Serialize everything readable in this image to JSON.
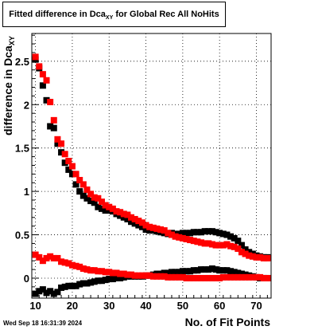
{
  "title": {
    "main": "Fitted difference in Dca",
    "sub": "XY",
    "rest": " for Global Rec All NoHits"
  },
  "axis_labels": {
    "y_main": "difference in Dca",
    "y_sub": "XY",
    "x": "No. of Fit Points"
  },
  "datestamp": "Wed Sep 18 16:31:39 2024",
  "chart_data": {
    "type": "scatter",
    "xlim": [
      9,
      74
    ],
    "ylim": [
      -0.23,
      2.82
    ],
    "grid": true,
    "x_ticks": [
      10,
      20,
      30,
      40,
      50,
      60,
      70
    ],
    "y_ticks": [
      0,
      0.5,
      1,
      1.5,
      2,
      2.5
    ],
    "y_tick_labels": [
      "0",
      "0.5",
      "1",
      "1.5",
      "2",
      "2.5"
    ],
    "series": [
      {
        "color": "#000000",
        "x": [
          10,
          11,
          12,
          13,
          14,
          15,
          16,
          17,
          18,
          19,
          20,
          21,
          22,
          23,
          24,
          25,
          26,
          27,
          28,
          29,
          30,
          31,
          32,
          33,
          34,
          35,
          36,
          37,
          38,
          39,
          40,
          41,
          42,
          43,
          44,
          45,
          46,
          47,
          48,
          49,
          50,
          51,
          52,
          53,
          54,
          55,
          56,
          57,
          58,
          59,
          60,
          61,
          62,
          63,
          64,
          65,
          66,
          67,
          68,
          69,
          70,
          71,
          72,
          73
        ],
        "y": [
          2.52,
          2.42,
          2.22,
          2.05,
          1.75,
          1.73,
          1.55,
          1.45,
          1.33,
          1.25,
          1.2,
          1.08,
          1.0,
          0.95,
          0.92,
          0.89,
          0.87,
          0.82,
          0.8,
          0.78,
          0.78,
          0.77,
          0.74,
          0.72,
          0.7,
          0.68,
          0.65,
          0.63,
          0.61,
          0.59,
          0.56,
          0.55,
          0.55,
          0.54,
          0.53,
          0.52,
          0.51,
          0.52,
          0.51,
          0.51,
          0.52,
          0.52,
          0.52,
          0.53,
          0.53,
          0.53,
          0.54,
          0.54,
          0.54,
          0.53,
          0.52,
          0.51,
          0.5,
          0.48,
          0.46,
          0.43,
          0.38,
          0.33,
          0.3,
          0.28,
          0.26,
          0.25,
          0.24,
          0.24
        ]
      },
      {
        "color": "#ff0000",
        "x": [
          10,
          11,
          12,
          13,
          14,
          15,
          16,
          17,
          18,
          19,
          20,
          21,
          22,
          23,
          24,
          25,
          26,
          27,
          28,
          29,
          30,
          31,
          32,
          33,
          34,
          35,
          36,
          37,
          38,
          39,
          40,
          41,
          42,
          43,
          44,
          45,
          46,
          47,
          48,
          49,
          50,
          51,
          52,
          53,
          54,
          55,
          56,
          57,
          58,
          59,
          60,
          61,
          62,
          63,
          64,
          65,
          66,
          67,
          68,
          69,
          70,
          71,
          72,
          73
        ],
        "y": [
          2.55,
          2.44,
          2.35,
          2.28,
          2.03,
          1.82,
          1.6,
          1.55,
          1.43,
          1.35,
          1.29,
          1.2,
          1.13,
          1.08,
          1.02,
          0.97,
          0.93,
          0.92,
          0.88,
          0.84,
          0.82,
          0.8,
          0.77,
          0.76,
          0.74,
          0.73,
          0.7,
          0.68,
          0.66,
          0.64,
          0.61,
          0.59,
          0.58,
          0.57,
          0.56,
          0.55,
          0.52,
          0.5,
          0.48,
          0.47,
          0.46,
          0.45,
          0.44,
          0.43,
          0.42,
          0.41,
          0.4,
          0.4,
          0.39,
          0.38,
          0.38,
          0.38,
          0.39,
          0.37,
          0.36,
          0.34,
          0.3,
          0.28,
          0.26,
          0.25,
          0.24,
          0.24,
          0.23,
          0.23
        ]
      },
      {
        "color": "#000000",
        "x": [
          10,
          11,
          12,
          13,
          14,
          15,
          16,
          17,
          18,
          19,
          20,
          21,
          22,
          23,
          24,
          25,
          26,
          27,
          28,
          29,
          30,
          31,
          32,
          33,
          34,
          35,
          36,
          37,
          38,
          39,
          40,
          41,
          42,
          43,
          44,
          45,
          46,
          47,
          48,
          49,
          50,
          51,
          52,
          53,
          54,
          55,
          56,
          57,
          58,
          59,
          60,
          61,
          62,
          63,
          64,
          65,
          66,
          67,
          68,
          69,
          70,
          71,
          72,
          73
        ],
        "y": [
          -0.18,
          -0.15,
          -0.13,
          -0.17,
          -0.15,
          -0.18,
          -0.16,
          -0.11,
          -0.1,
          -0.09,
          -0.09,
          -0.09,
          -0.07,
          -0.06,
          -0.06,
          -0.05,
          -0.04,
          -0.03,
          -0.03,
          -0.02,
          -0.01,
          -0.01,
          0.0,
          0.0,
          0.01,
          0.02,
          0.02,
          0.02,
          0.02,
          0.02,
          0.03,
          0.03,
          0.04,
          0.05,
          0.05,
          0.06,
          0.06,
          0.07,
          0.07,
          0.07,
          0.08,
          0.08,
          0.08,
          0.09,
          0.09,
          0.1,
          0.1,
          0.1,
          0.11,
          0.1,
          0.09,
          0.09,
          0.09,
          0.08,
          0.07,
          0.06,
          0.05,
          0.04,
          0.03,
          0.02,
          0.01,
          0.0,
          0.0,
          0.0
        ]
      },
      {
        "color": "#ff0000",
        "x": [
          10,
          11,
          12,
          13,
          14,
          15,
          16,
          17,
          18,
          19,
          20,
          21,
          22,
          23,
          24,
          25,
          26,
          27,
          28,
          29,
          30,
          31,
          32,
          33,
          34,
          35,
          36,
          37,
          38,
          39,
          40,
          41,
          42,
          43,
          44,
          45,
          46,
          47,
          48,
          49,
          50,
          51,
          52,
          53,
          54,
          55,
          56,
          57,
          58,
          59,
          60,
          61,
          62,
          63,
          64,
          65,
          66,
          67,
          68,
          69,
          70,
          71,
          72,
          73
        ],
        "y": [
          0.27,
          0.24,
          0.2,
          0.23,
          0.25,
          0.23,
          0.23,
          0.19,
          0.18,
          0.17,
          0.15,
          0.14,
          0.13,
          0.11,
          0.1,
          0.09,
          0.09,
          0.08,
          0.08,
          0.07,
          0.07,
          0.06,
          0.06,
          0.05,
          0.05,
          0.04,
          0.04,
          0.03,
          0.03,
          0.03,
          0.03,
          0.03,
          0.02,
          0.02,
          0.02,
          0.02,
          0.01,
          0.01,
          0.01,
          0.01,
          0.01,
          0.0,
          0.0,
          0.0,
          0.0,
          0.0,
          0.0,
          0.0,
          0.0,
          0.0,
          0.0,
          0.01,
          0.01,
          0.01,
          0.01,
          0.01,
          0.01,
          0.01,
          0.01,
          0.01,
          0.01,
          0.01,
          0.0,
          0.0
        ]
      }
    ]
  }
}
